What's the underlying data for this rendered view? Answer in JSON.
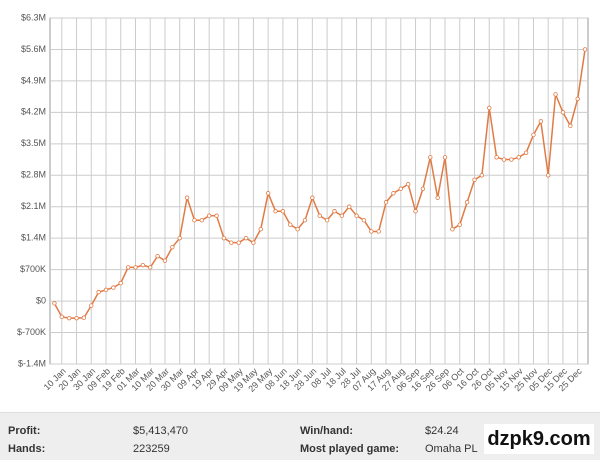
{
  "chart_data": {
    "type": "line",
    "categories": [
      null,
      "10 Jan",
      null,
      "20 Jan",
      null,
      "30 Jan",
      null,
      "09 Feb",
      null,
      "19 Feb",
      null,
      "01 Mar",
      null,
      "10 Mar",
      null,
      "20 Mar",
      null,
      "30 Mar",
      null,
      "09 Apr",
      null,
      "19 Apr",
      null,
      "29 Apr",
      null,
      "09 May",
      null,
      "19 May",
      null,
      "29 May",
      null,
      "08 Jun",
      null,
      "18 Jun",
      null,
      "28 Jun",
      null,
      "08 Jul",
      null,
      "18 Jul",
      null,
      "28 Jul",
      null,
      "07 Aug",
      null,
      "17 Aug",
      null,
      "27 Aug",
      null,
      "06 Sep",
      null,
      "16 Sep",
      null,
      "26 Sep",
      null,
      "06 Oct",
      null,
      "16 Oct",
      null,
      "26 Oct",
      null,
      "05 Nov",
      null,
      "15 Nov",
      null,
      "25 Nov",
      null,
      "05 Dec",
      null,
      "15 Dec",
      null,
      "25 Dec",
      null
    ],
    "series": [
      {
        "color": "#e07b45",
        "values": [
          -50000,
          -350000,
          -380000,
          -380000,
          -370000,
          -100000,
          200000,
          250000,
          300000,
          400000,
          750000,
          750000,
          800000,
          750000,
          1000000,
          900000,
          1200000,
          1400000,
          2300000,
          1800000,
          1800000,
          1900000,
          1900000,
          1400000,
          1300000,
          1300000,
          1400000,
          1300000,
          1600000,
          2400000,
          2000000,
          2000000,
          1700000,
          1600000,
          1800000,
          2300000,
          1900000,
          1800000,
          2000000,
          1900000,
          2100000,
          1900000,
          1800000,
          1550000,
          1550000,
          2200000,
          2400000,
          2500000,
          2600000,
          2000000,
          2500000,
          3200000,
          2300000,
          3200000,
          1600000,
          1700000,
          2200000,
          2700000,
          2800000,
          4300000,
          3200000,
          3150000,
          3150000,
          3200000,
          3300000,
          3700000,
          4000000,
          2800000,
          4600000,
          4200000,
          3900000,
          4500000,
          5600000
        ]
      }
    ],
    "ylim": [
      -1400000,
      6300000
    ],
    "yticks": [
      {
        "value": -1400000,
        "label": "$-1.4M"
      },
      {
        "value": -700000,
        "label": "$-700K"
      },
      {
        "value": 0,
        "label": "$0"
      },
      {
        "value": 700000,
        "label": "$700K"
      },
      {
        "value": 1400000,
        "label": "$1.4M"
      },
      {
        "value": 2100000,
        "label": "$2.1M"
      },
      {
        "value": 2800000,
        "label": "$2.8M"
      },
      {
        "value": 3500000,
        "label": "$3.5M"
      },
      {
        "value": 4200000,
        "label": "$4.2M"
      },
      {
        "value": 4900000,
        "label": "$4.9M"
      },
      {
        "value": 5600000,
        "label": "$5.6M"
      },
      {
        "value": 6300000,
        "label": "$6.3M"
      }
    ],
    "grid": true
  },
  "stats": [
    [
      {
        "label": "Profit:",
        "value": "$5,413,470"
      },
      {
        "label": "Win/hand:",
        "value": "$24.24"
      }
    ],
    [
      {
        "label": "Hands:",
        "value": "223259"
      },
      {
        "label": "Most played game:",
        "value": "Omaha PL"
      }
    ]
  ],
  "watermark": "dzpk9.com"
}
